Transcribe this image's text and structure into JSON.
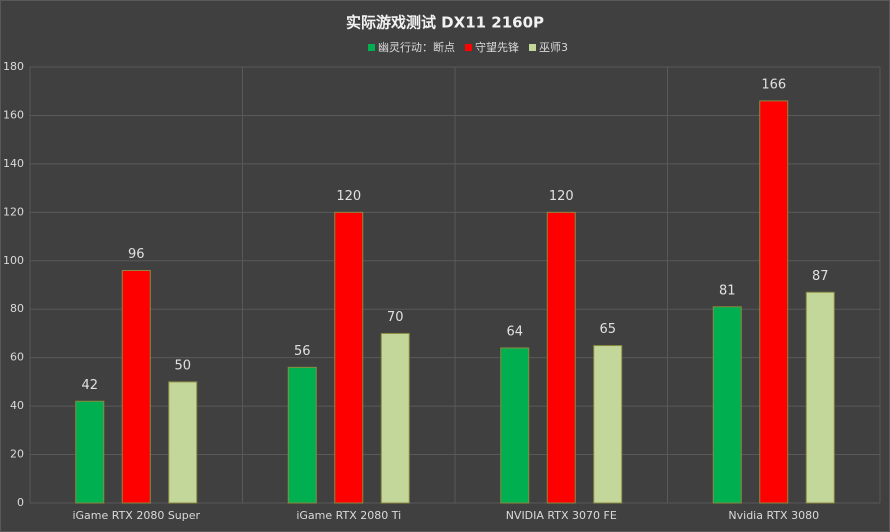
{
  "chart_data": {
    "type": "bar",
    "title": "实际游戏测试 DX11 2160P",
    "categories": [
      "iGame RTX 2080 Super",
      "iGame RTX 2080 Ti",
      "NVIDIA RTX 3070 FE",
      "Nvidia RTX 3080"
    ],
    "series": [
      {
        "name": "幽灵行动：断点",
        "color": "#00b050",
        "values": [
          42,
          56,
          64,
          81
        ]
      },
      {
        "name": "守望先锋",
        "color": "#ff0000",
        "values": [
          96,
          120,
          120,
          166
        ]
      },
      {
        "name": "巫师3",
        "color": "#c4d79b",
        "values": [
          50,
          70,
          65,
          87
        ]
      }
    ],
    "ylim": [
      0,
      180
    ],
    "yticks": [
      0,
      20,
      40,
      60,
      80,
      100,
      120,
      140,
      160,
      180
    ],
    "grid": true
  }
}
